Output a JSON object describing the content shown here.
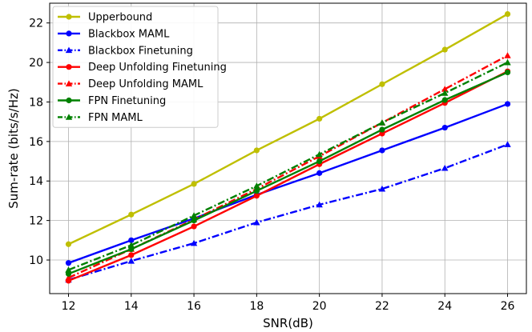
{
  "chart_data": {
    "type": "line",
    "xlabel": "SNR(dB)",
    "ylabel": "Sum-rate (bits/s/Hz)",
    "x": [
      12,
      14,
      16,
      18,
      20,
      22,
      24,
      26
    ],
    "xlim": [
      11.4,
      26.6
    ],
    "ylim": [
      8.3,
      23.0
    ],
    "xticks": [
      12,
      14,
      16,
      18,
      20,
      22,
      24,
      26
    ],
    "yticks": [
      10,
      12,
      14,
      16,
      18,
      20,
      22
    ],
    "grid": true,
    "legend_position": "top-left",
    "series": [
      {
        "name": "Upperbound",
        "color": "#bfbf00",
        "linestyle": "solid",
        "marker": "circle",
        "values": [
          10.8,
          12.3,
          13.85,
          15.55,
          17.15,
          18.9,
          20.65,
          22.45
        ]
      },
      {
        "name": "Blackbox MAML",
        "color": "#0000ff",
        "linestyle": "solid",
        "marker": "circle",
        "values": [
          9.85,
          11.0,
          12.1,
          13.3,
          14.4,
          15.55,
          16.7,
          17.9
        ]
      },
      {
        "name": "Blackbox Finetuning",
        "color": "#0000ff",
        "linestyle": "dashdot",
        "marker": "triangle",
        "values": [
          9.0,
          9.95,
          10.85,
          11.9,
          12.8,
          13.6,
          14.65,
          15.85
        ]
      },
      {
        "name": "Deep Unfolding Finetuning",
        "color": "#ff0000",
        "linestyle": "solid",
        "marker": "circle",
        "values": [
          8.95,
          10.25,
          11.7,
          13.25,
          14.85,
          16.4,
          17.95,
          19.55
        ]
      },
      {
        "name": "Deep Unfolding MAML",
        "color": "#ff0000",
        "linestyle": "dashdot",
        "marker": "triangle",
        "values": [
          9.1,
          10.55,
          12.05,
          13.6,
          15.25,
          16.95,
          18.65,
          20.35
        ]
      },
      {
        "name": "FPN Finetuning",
        "color": "#008000",
        "linestyle": "solid",
        "marker": "circle",
        "values": [
          9.3,
          10.55,
          12.0,
          13.5,
          15.0,
          16.6,
          18.1,
          19.5
        ]
      },
      {
        "name": "FPN MAML",
        "color": "#008000",
        "linestyle": "dashdot",
        "marker": "triangle",
        "values": [
          9.5,
          10.75,
          12.25,
          13.75,
          15.35,
          16.95,
          18.45,
          20.0
        ]
      }
    ]
  }
}
